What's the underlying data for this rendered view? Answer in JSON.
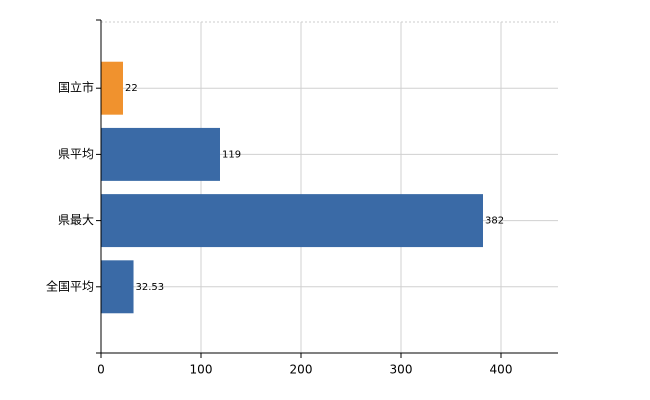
{
  "chart_data": {
    "type": "bar",
    "orientation": "horizontal",
    "categories": [
      "国立市",
      "県平均",
      "県最大",
      "全国平均"
    ],
    "values": [
      22,
      119,
      382,
      32.53
    ],
    "colors": [
      "#f0922e",
      "#3a6aa6",
      "#3a6aa6",
      "#3a6aa6"
    ],
    "xlim": [
      0,
      457
    ],
    "xticks": [
      0,
      100,
      200,
      300,
      400
    ],
    "grid": true
  }
}
